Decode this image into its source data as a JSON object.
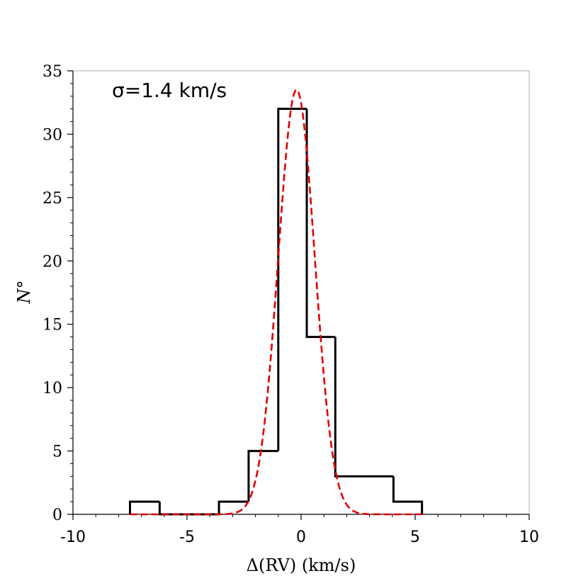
{
  "chart_data": {
    "type": "histogram",
    "annotation": "σ=1.4 km/s",
    "xlabel": "Δ(RV) (km/s)",
    "ylabel": "N°",
    "xlim": [
      -10,
      10
    ],
    "ylim": [
      0,
      35
    ],
    "x_ticks": [
      -10,
      -5,
      0,
      5,
      10
    ],
    "x_tick_labels": [
      "-10",
      "-5",
      "0",
      "5",
      "10"
    ],
    "y_ticks": [
      0,
      5,
      10,
      15,
      20,
      25,
      30,
      35
    ],
    "y_tick_labels": [
      "0",
      "5",
      "10",
      "15",
      "20",
      "25",
      "30",
      "35"
    ],
    "grid": false,
    "bin_edges": [
      -7.5,
      -6.2,
      -4.9,
      -3.6,
      -2.3,
      -1.0,
      0.25,
      1.5,
      2.8,
      4.05,
      5.3
    ],
    "counts": [
      1,
      0,
      0,
      1,
      5,
      32,
      14,
      3,
      3,
      1
    ],
    "fit": {
      "type": "gaussian",
      "mean": -0.2,
      "sigma": 0.8,
      "amplitude": 33.5,
      "x_range": [
        -7.5,
        5.3
      ],
      "color": "#e00000",
      "style": "dashed"
    },
    "histogram_color": "#000000"
  }
}
